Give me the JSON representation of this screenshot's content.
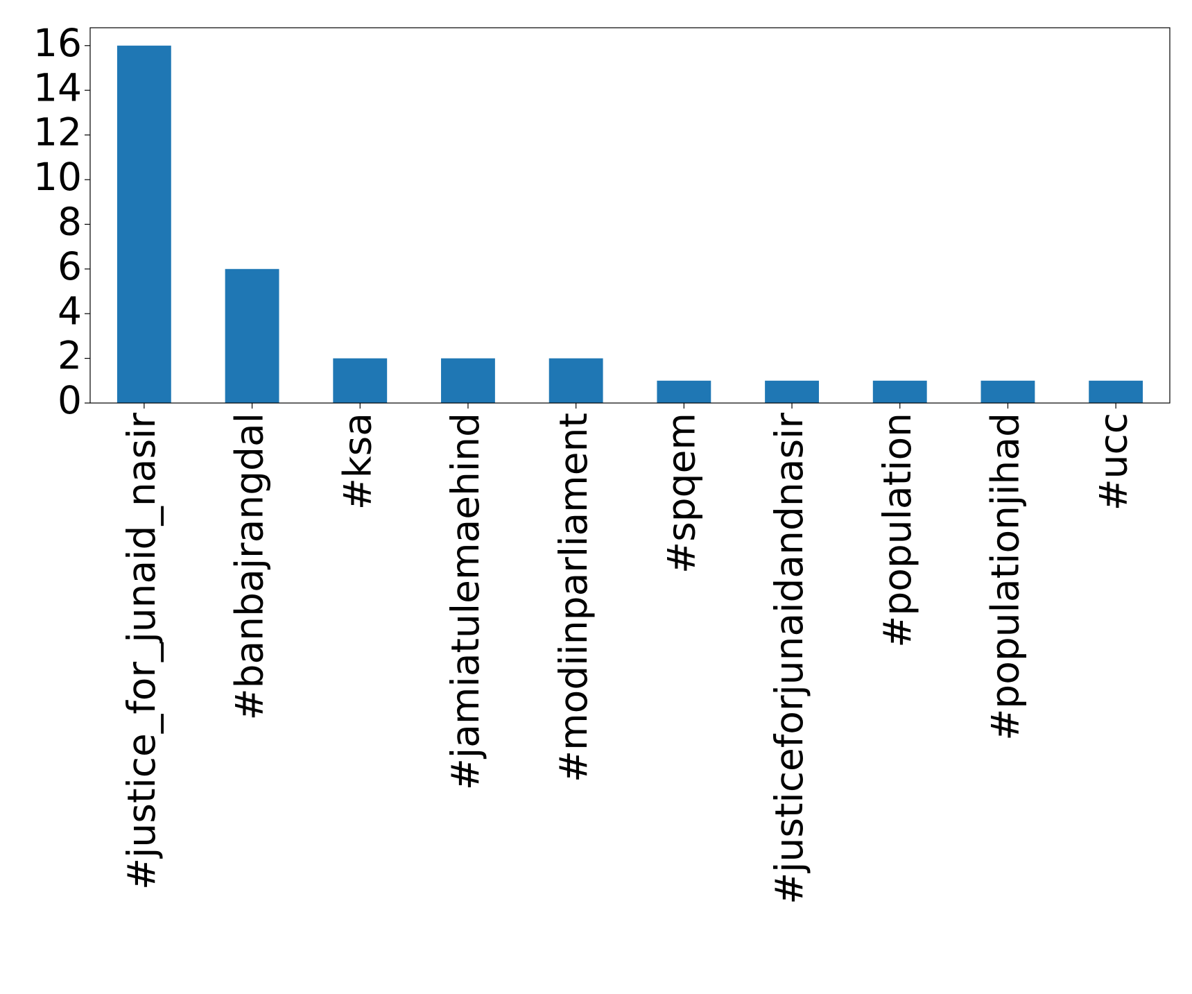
{
  "chart_data": {
    "type": "bar",
    "categories": [
      "#justice_for_junaid_nasir",
      "#banbajrangdal",
      "#ksa",
      "#jamiatulemaehind",
      "#modiinparliament",
      "#spqem",
      "#justiceforjunaidandnasir",
      "#population",
      "#populationjihad",
      "#ucc"
    ],
    "values": [
      16,
      6,
      2,
      2,
      2,
      1,
      1,
      1,
      1,
      1
    ],
    "color": "#1f77b4",
    "ylim": [
      0,
      16.8
    ],
    "yticks": [
      0,
      2,
      4,
      6,
      8,
      10,
      12,
      14,
      16
    ],
    "grid": false
  }
}
